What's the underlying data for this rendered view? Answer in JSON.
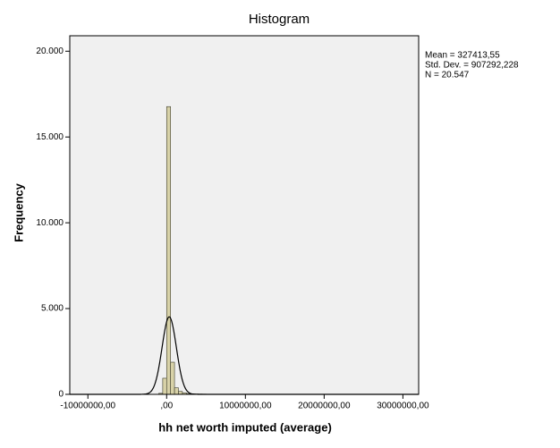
{
  "chart_data": {
    "type": "histogram",
    "title": "Histogram",
    "x_label": "hh net worth imputed (average)",
    "y_label": "Frequency",
    "bins": [
      -1000000,
      -500000,
      0,
      500000,
      1000000,
      1500000,
      2000000,
      2500000,
      3000000,
      3500000,
      4000000,
      4500000,
      5000000
    ],
    "values": [
      60,
      940,
      16770,
      1875,
      380,
      170,
      90,
      50,
      35,
      25,
      20,
      15
    ],
    "color": "#d8d2a8",
    "curve_color": "#000000",
    "xlim": [
      -12300000,
      32000000
    ],
    "ylim": [
      0,
      20900
    ],
    "xticks": [
      {
        "value": -10000000,
        "label": "-10000000,00"
      },
      {
        "value": 0,
        "label": ",00"
      },
      {
        "value": 10000000,
        "label": "10000000,00"
      },
      {
        "value": 20000000,
        "label": "20000000,00"
      },
      {
        "value": 30000000,
        "label": "30000000,00"
      }
    ],
    "yticks": [
      0,
      {
        "value": 5000,
        "label": "5.000"
      },
      {
        "value": 10000,
        "label": "10.000"
      },
      {
        "value": 15000,
        "label": "15.000"
      },
      {
        "value": 20000,
        "label": "20.000"
      }
    ],
    "stats": [
      {
        "value": 327413.55,
        "label": "Mean = 327413,55"
      },
      {
        "value": 907292.228,
        "label": "Std. Dev. = 907292,228"
      },
      {
        "value": 20547,
        "label": "N = 20.547"
      }
    ]
  }
}
